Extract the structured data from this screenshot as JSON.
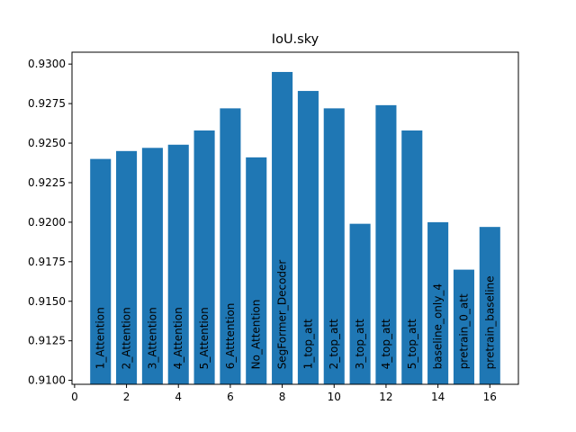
{
  "chart_data": {
    "type": "bar",
    "title": "IoU.sky",
    "xlabel": "",
    "ylabel": "",
    "x": [
      1,
      2,
      3,
      4,
      5,
      6,
      7,
      8,
      9,
      10,
      11,
      12,
      13,
      14,
      15,
      16
    ],
    "categories": [
      "1_Attention",
      "2_Attention",
      "3_Attention",
      "4_Attention",
      "5_Attention",
      "6_Atttention",
      "No_Attention",
      "SegFormer_Decoder",
      "1_top_att",
      "2_top_att",
      "3_top_att",
      "4_top_att",
      "5_top_att",
      "baseline_only_4",
      "pretrain_0_att",
      "pretrain_baseline"
    ],
    "values": [
      0.924,
      0.9245,
      0.9247,
      0.9249,
      0.9258,
      0.9272,
      0.9241,
      0.9295,
      0.9283,
      0.9272,
      0.9199,
      0.9274,
      0.9258,
      0.92,
      0.917,
      0.9197
    ],
    "xlim": [
      -0.1,
      17.1
    ],
    "ylim": [
      0.90975,
      0.93075
    ],
    "xticks": [
      "0",
      "2",
      "4",
      "6",
      "8",
      "10",
      "12",
      "14",
      "16"
    ],
    "yticks": [
      "0.9100",
      "0.9125",
      "0.9150",
      "0.9175",
      "0.9200",
      "0.9225",
      "0.9250",
      "0.9275",
      "0.9300"
    ],
    "bar_color": "#1f77b4",
    "grid": false,
    "legend": "none"
  }
}
